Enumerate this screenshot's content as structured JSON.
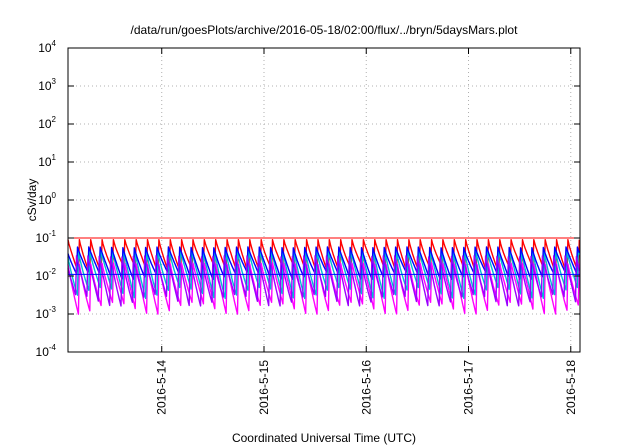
{
  "chart_data": {
    "type": "line",
    "title": "/data/run/goesPlots/archive/2016-05-18/02:00/flux/../bryn/5daysMars.plot",
    "xlabel": "Coordinated Universal Time (UTC)",
    "ylabel": "cSv/day",
    "yscale": "log",
    "ylim": [
      0.0001,
      10000
    ],
    "xlim": [
      "2016-05-13 02:00",
      "2016-05-18 02:10"
    ],
    "grid": true,
    "y_ticks": [
      {
        "base": "10",
        "exp": "-4"
      },
      {
        "base": "10",
        "exp": "-3"
      },
      {
        "base": "10",
        "exp": "-2"
      },
      {
        "base": "10",
        "exp": "-1"
      },
      {
        "base": "10",
        "exp": "0"
      },
      {
        "base": "10",
        "exp": "1"
      },
      {
        "base": "10",
        "exp": "2"
      },
      {
        "base": "10",
        "exp": "3"
      },
      {
        "base": "10",
        "exp": "4"
      }
    ],
    "x_ticks": [
      {
        "label": "2016-5-14",
        "time": "2016-05-14 00:00"
      },
      {
        "label": "2016-5-15",
        "time": "2016-05-15 00:00"
      },
      {
        "label": "2016-5-16",
        "time": "2016-05-16 00:00"
      },
      {
        "label": "2016-5-17",
        "time": "2016-05-17 00:00"
      },
      {
        "label": "2016-5-18",
        "time": "2016-05-18 00:00"
      }
    ],
    "pattern": {
      "description_free": true,
      "cycles_per_day": 9,
      "start_time": "2016-05-13 02:00",
      "end_time": "2016-05-18 02:10"
    },
    "series": [
      {
        "color": "#ff0000",
        "peak": 0.09,
        "trough": 0.012
      },
      {
        "color": "#ff00ff",
        "peak": 0.03,
        "trough": 0.0014
      },
      {
        "color": "#00bcd4",
        "peak": 0.06,
        "trough": 0.0035
      },
      {
        "color": "#0000ff",
        "peak": 0.07,
        "trough": 0.01
      },
      {
        "color": "#9c00ff",
        "peak": 0.045,
        "trough": 0.0022
      }
    ],
    "threshold_lines": [
      {
        "color": "#ff0000",
        "value": 0.1
      },
      {
        "color": "#0000ff",
        "value": 0.011
      }
    ]
  }
}
